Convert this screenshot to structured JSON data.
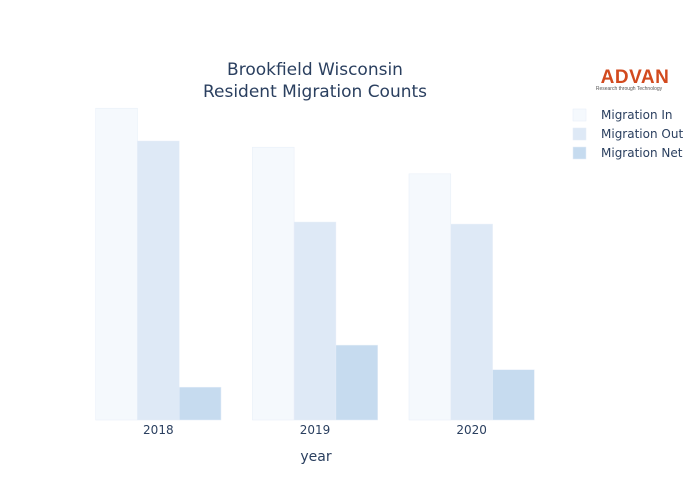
{
  "logo": {
    "name": "ADVAN",
    "tagline": "Research through Technology",
    "color": "#d24a1e"
  },
  "chart_data": {
    "type": "bar",
    "title": "Brookfield Wisconsin",
    "subtitle": "Resident Migration Counts",
    "xlabel": "year",
    "ylabel": "",
    "categories": [
      "2018",
      "2019",
      "2020"
    ],
    "series": [
      {
        "name": "Migration In",
        "values": [
          1520,
          1330,
          1200
        ],
        "color": "#f5f9fd"
      },
      {
        "name": "Migration Out",
        "values": [
          1360,
          965,
          955
        ],
        "color": "#dee9f6"
      },
      {
        "name": "Migration Net",
        "values": [
          160,
          365,
          245
        ],
        "color": "#c6dbef"
      }
    ],
    "ylim": [
      0,
      1560
    ],
    "grid": false,
    "legend": "top-right"
  }
}
